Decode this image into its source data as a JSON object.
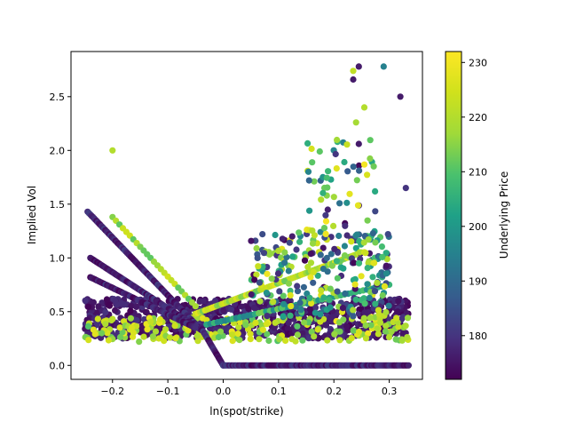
{
  "chart_data": {
    "type": "scatter",
    "title": "",
    "xlabel": "ln(spot/strike)",
    "ylabel": "Implied Vol",
    "xlim": [
      -0.275,
      0.36
    ],
    "ylim": [
      -0.13,
      2.92
    ],
    "xticks": [
      -0.2,
      -0.1,
      0.0,
      0.1,
      0.2,
      0.3
    ],
    "xtick_labels": [
      "−0.2",
      "−0.1",
      "0.0",
      "0.1",
      "0.2",
      "0.3"
    ],
    "yticks": [
      0.0,
      0.5,
      1.0,
      1.5,
      2.0,
      2.5
    ],
    "ytick_labels": [
      "0.0",
      "0.5",
      "1.0",
      "1.5",
      "2.0",
      "2.5"
    ],
    "grid": false,
    "legend": "none",
    "colorbar": {
      "label": "Underlying Price",
      "colormap": "viridis",
      "range": [
        172,
        232
      ],
      "ticks": [
        180,
        190,
        200,
        210,
        220,
        230
      ],
      "tick_labels": [
        "180",
        "190",
        "200",
        "210",
        "220",
        "230"
      ]
    },
    "color_variable": "Underlying Price",
    "point_groups": [
      {
        "shape": "band",
        "x_from": -0.25,
        "x_to": 0.335,
        "y_low": 0.25,
        "y_high": 0.62,
        "price_range": [
          172,
          180
        ],
        "count": 900
      },
      {
        "shape": "band",
        "x_from": -0.25,
        "x_to": 0.335,
        "y_low": 0.22,
        "y_high": 0.45,
        "price_range": [
          210,
          230
        ],
        "count": 220
      },
      {
        "shape": "line",
        "x_from": -0.245,
        "y_from": 1.43,
        "x_to": -0.04,
        "y_to": 0.33,
        "price_range": [
          172,
          182
        ],
        "count": 90
      },
      {
        "shape": "line",
        "x_from": -0.24,
        "y_from": 1.0,
        "x_to": -0.04,
        "y_to": 0.33,
        "price_range": [
          172,
          182
        ],
        "count": 80
      },
      {
        "shape": "line",
        "x_from": -0.24,
        "y_from": 0.82,
        "x_to": -0.05,
        "y_to": 0.35,
        "price_range": [
          172,
          182
        ],
        "count": 70
      },
      {
        "shape": "line",
        "x_from": -0.2,
        "y_from": 1.38,
        "x_to": -0.05,
        "y_to": 0.55,
        "price_range": [
          210,
          225
        ],
        "count": 25
      },
      {
        "shape": "line",
        "x_from": -0.04,
        "y_from": 0.35,
        "x_to": 0.0,
        "y_to": 0.0,
        "price_range": [
          172,
          182
        ],
        "count": 22
      },
      {
        "shape": "line",
        "x_from": 0.0,
        "y_from": 0.0,
        "x_to": 0.335,
        "y_to": 0.0,
        "price_range": [
          172,
          182
        ],
        "count": 120
      },
      {
        "shape": "line",
        "x_from": -0.05,
        "y_from": 0.48,
        "x_to": 0.25,
        "y_to": 1.05,
        "price_range": [
          212,
          228
        ],
        "count": 70
      },
      {
        "shape": "line",
        "x_from": -0.03,
        "y_from": 0.38,
        "x_to": 0.3,
        "y_to": 0.75,
        "price_range": [
          195,
          215
        ],
        "count": 50
      },
      {
        "shape": "band",
        "x_from": 0.05,
        "x_to": 0.3,
        "y_low": 0.45,
        "y_high": 1.25,
        "price_range": [
          172,
          230
        ],
        "count": 260
      },
      {
        "shape": "band",
        "x_from": 0.15,
        "x_to": 0.28,
        "y_low": 1.1,
        "y_high": 2.1,
        "price_range": [
          172,
          232
        ],
        "count": 70
      }
    ],
    "highlighted_points": [
      {
        "x": -0.2,
        "y": 2.0,
        "price": 220
      },
      {
        "x": 0.235,
        "y": 2.74,
        "price": 222
      },
      {
        "x": 0.245,
        "y": 2.78,
        "price": 176
      },
      {
        "x": 0.235,
        "y": 2.66,
        "price": 176
      },
      {
        "x": 0.29,
        "y": 2.78,
        "price": 195
      },
      {
        "x": 0.32,
        "y": 2.5,
        "price": 176
      },
      {
        "x": 0.255,
        "y": 2.4,
        "price": 220
      },
      {
        "x": 0.24,
        "y": 2.26,
        "price": 218
      },
      {
        "x": 0.245,
        "y": 2.06,
        "price": 176
      },
      {
        "x": 0.33,
        "y": 1.65,
        "price": 180
      }
    ]
  }
}
